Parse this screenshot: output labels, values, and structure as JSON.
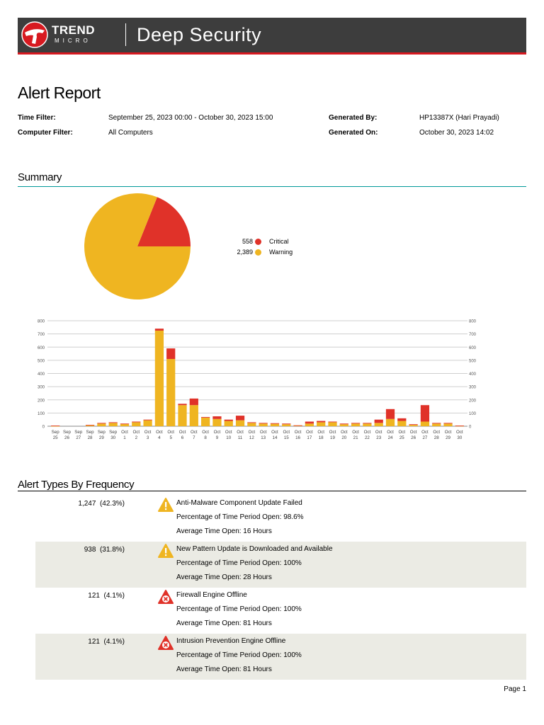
{
  "header": {
    "brand_line1": "TREND",
    "brand_line2": "MICRO",
    "product": "Deep Security",
    "accent": "#d71920",
    "bar_color": "#3d3d3d"
  },
  "report": {
    "title": "Alert Report",
    "time_filter_label": "Time Filter:",
    "time_filter_value": "September 25, 2023 00:00 - October 30, 2023 15:00",
    "computer_filter_label": "Computer Filter:",
    "computer_filter_value": "All Computers",
    "generated_by_label": "Generated By:",
    "generated_by_value": "HP13387X (Hari Prayadi)",
    "generated_on_label": "Generated On:",
    "generated_on_value": "October 30, 2023 14:02"
  },
  "summary": {
    "heading": "Summary",
    "rule_color": "#009999",
    "legend": [
      {
        "count": "558",
        "label": "Critical",
        "color": "#e03229"
      },
      {
        "count": "2,389",
        "label": "Warning",
        "color": "#efb521"
      }
    ]
  },
  "chart_data": [
    {
      "type": "pie",
      "labels": [
        "Critical",
        "Warning"
      ],
      "values": [
        558,
        2389
      ],
      "colors": [
        "#e03229",
        "#efb521"
      ]
    },
    {
      "type": "bar",
      "stacked": true,
      "ylim": [
        0,
        800
      ],
      "yticks": [
        0,
        100,
        200,
        300,
        400,
        500,
        600,
        700,
        800
      ],
      "grid": true,
      "categories": [
        [
          "Sep",
          "25"
        ],
        [
          "Sep",
          "26"
        ],
        [
          "Sep",
          "27"
        ],
        [
          "Sep",
          "28"
        ],
        [
          "Sep",
          "29"
        ],
        [
          "Sep",
          "30"
        ],
        [
          "Oct",
          "1"
        ],
        [
          "Oct",
          "2"
        ],
        [
          "Oct",
          "3"
        ],
        [
          "Oct",
          "4"
        ],
        [
          "Oct",
          "5"
        ],
        [
          "Oct",
          "6"
        ],
        [
          "Oct",
          "7"
        ],
        [
          "Oct",
          "8"
        ],
        [
          "Oct",
          "9"
        ],
        [
          "Oct",
          "10"
        ],
        [
          "Oct",
          "11"
        ],
        [
          "Oct",
          "12"
        ],
        [
          "Oct",
          "13"
        ],
        [
          "Oct",
          "14"
        ],
        [
          "Oct",
          "15"
        ],
        [
          "Oct",
          "16"
        ],
        [
          "Oct",
          "17"
        ],
        [
          "Oct",
          "18"
        ],
        [
          "Oct",
          "19"
        ],
        [
          "Oct",
          "20"
        ],
        [
          "Oct",
          "21"
        ],
        [
          "Oct",
          "22"
        ],
        [
          "Oct",
          "23"
        ],
        [
          "Oct",
          "24"
        ],
        [
          "Oct",
          "25"
        ],
        [
          "Oct",
          "26"
        ],
        [
          "Oct",
          "27"
        ],
        [
          "Oct",
          "28"
        ],
        [
          "Oct",
          "29"
        ],
        [
          "Oct",
          "30"
        ]
      ],
      "series": [
        {
          "name": "Warning",
          "color": "#efb521",
          "values": [
            2,
            0,
            0,
            8,
            20,
            25,
            18,
            30,
            45,
            725,
            510,
            160,
            160,
            65,
            55,
            40,
            45,
            25,
            20,
            18,
            15,
            5,
            20,
            30,
            30,
            15,
            20,
            20,
            25,
            55,
            40,
            10,
            35,
            20,
            20,
            3
          ]
        },
        {
          "name": "Critical",
          "color": "#e03229",
          "values": [
            3,
            0,
            0,
            2,
            5,
            5,
            2,
            5,
            5,
            15,
            80,
            10,
            50,
            5,
            20,
            10,
            35,
            5,
            5,
            5,
            5,
            2,
            15,
            10,
            5,
            5,
            5,
            5,
            25,
            75,
            20,
            5,
            125,
            5,
            5,
            2
          ]
        }
      ]
    }
  ],
  "alert_types": {
    "heading": "Alert Types By Frequency",
    "rows": [
      {
        "count": "1,247  (42.3%)",
        "icon": "warning-triangle-icon",
        "name": "Anti-Malware Component Update Failed",
        "pct": "Percentage of Time Period Open: 98.6%",
        "avg": "Average Time Open: 16 Hours"
      },
      {
        "count": "938  (31.8%)",
        "icon": "warning-triangle-icon",
        "name": "New Pattern Update is Downloaded and Available",
        "pct": "Percentage of Time Period Open: 100%",
        "avg": "Average Time Open: 28 Hours"
      },
      {
        "count": "121  (4.1%)",
        "icon": "critical-x-icon",
        "name": "Firewall Engine Offline",
        "pct": "Percentage of Time Period Open: 100%",
        "avg": "Average Time Open: 81 Hours"
      },
      {
        "count": "121  (4.1%)",
        "icon": "critical-x-icon",
        "name": "Intrusion Prevention Engine Offline",
        "pct": "Percentage of Time Period Open: 100%",
        "avg": "Average Time Open: 81 Hours"
      }
    ]
  },
  "footer": {
    "page": "Page 1"
  }
}
